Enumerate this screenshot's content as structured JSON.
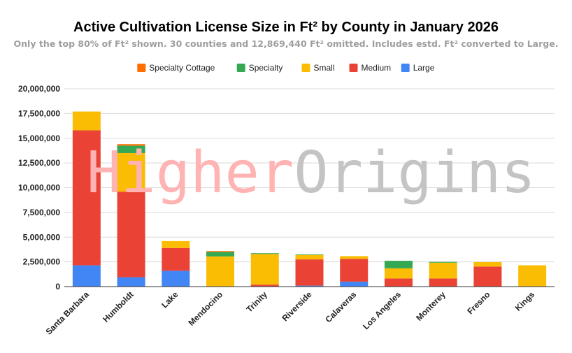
{
  "chart_data": {
    "type": "bar",
    "stacked": true,
    "title": "Active Cultivation License Size in Ft² by County in January 2026",
    "subtitle": "Only the top 80% of Ft² shown. 30 counties and 12,869,440 Ft² omitted. Includes estd. Ft² converted to Large.",
    "xlabel": "",
    "ylabel": "",
    "ylim": [
      0,
      20000000
    ],
    "yticks": [
      0,
      2500000,
      5000000,
      7500000,
      10000000,
      12500000,
      15000000,
      17500000,
      20000000
    ],
    "ytick_labels": [
      "0",
      "2,500,000",
      "5,000,000",
      "7,500,000",
      "10,000,000",
      "12,500,000",
      "15,000,000",
      "17,500,000",
      "20,000,000"
    ],
    "grid": true,
    "legend_position": "top",
    "categories": [
      "Santa Barbara",
      "Humboldt",
      "Lake",
      "Mendocino",
      "Trinity",
      "Riverside",
      "Calaveras",
      "Los Angeles",
      "Monterey",
      "Fresno",
      "Kings"
    ],
    "series": [
      {
        "name": "Large",
        "color": "#4285f4",
        "values": [
          2150000,
          950000,
          1600000,
          0,
          30000,
          100000,
          500000,
          0,
          0,
          0,
          0
        ]
      },
      {
        "name": "Medium",
        "color": "#ea4335",
        "values": [
          13650000,
          8650000,
          2300000,
          0,
          170000,
          2650000,
          2300000,
          820000,
          820000,
          2030000,
          0
        ]
      },
      {
        "name": "Small",
        "color": "#fbbc04",
        "values": [
          1900000,
          3900000,
          700000,
          3050000,
          3100000,
          450000,
          280000,
          1030000,
          1600000,
          450000,
          2150000
        ]
      },
      {
        "name": "Specialty",
        "color": "#34a853",
        "values": [
          0,
          750000,
          0,
          460000,
          80000,
          60000,
          0,
          760000,
          80000,
          0,
          0
        ]
      },
      {
        "name": "Specialty Cottage",
        "color": "#ff6d01",
        "values": [
          0,
          150000,
          0,
          80000,
          0,
          0,
          0,
          0,
          0,
          0,
          0
        ]
      }
    ],
    "legend_order": [
      "Specialty Cottage",
      "Specialty",
      "Small",
      "Medium",
      "Large"
    ]
  },
  "watermark": {
    "part1": "Higher",
    "part2": "Origins",
    "color1": "#ffb3b3",
    "color2": "#c4c4c4"
  }
}
